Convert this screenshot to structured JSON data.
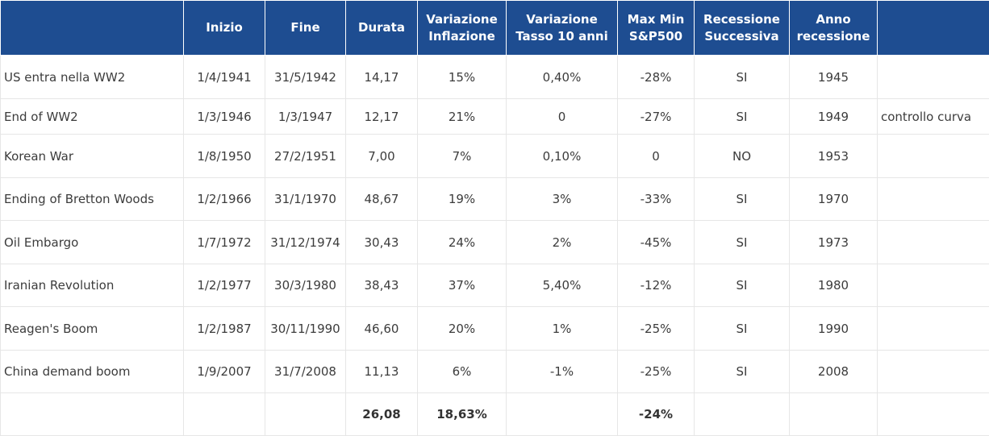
{
  "headers": [
    "",
    "Inizio",
    "Fine",
    "Durata",
    "Variazione Inflazione",
    "Variazione Tasso 10 anni",
    "Max Min S&P500",
    "Recessione Successiva",
    "Anno recessione",
    ""
  ],
  "rows": [
    {
      "evento": "US entra nella WW2",
      "inizio": "1/4/1941",
      "fine": "31/5/1942",
      "durata": "14,17",
      "inflazione": "15%",
      "tasso": "0,40%",
      "maxmin": "-28%",
      "recessione": "SI",
      "anno": "1945",
      "note": ""
    },
    {
      "evento": "End of WW2",
      "inizio": "1/3/1946",
      "fine": "1/3/1947",
      "durata": "12,17",
      "inflazione": "21%",
      "tasso": "0",
      "maxmin": "-27%",
      "recessione": "SI",
      "anno": "1949",
      "note": "controllo curva"
    },
    {
      "evento": "Korean War",
      "inizio": "1/8/1950",
      "fine": "27/2/1951",
      "durata": "7,00",
      "inflazione": "7%",
      "tasso": "0,10%",
      "maxmin": "0",
      "recessione": "NO",
      "anno": "1953",
      "note": ""
    },
    {
      "evento": "Ending of Bretton Woods",
      "inizio": "1/2/1966",
      "fine": "31/1/1970",
      "durata": "48,67",
      "inflazione": "19%",
      "tasso": "3%",
      "maxmin": "-33%",
      "recessione": "SI",
      "anno": "1970",
      "note": ""
    },
    {
      "evento": "Oil Embargo",
      "inizio": "1/7/1972",
      "fine": "31/12/1974",
      "durata": "30,43",
      "inflazione": "24%",
      "tasso": "2%",
      "maxmin": "-45%",
      "recessione": "SI",
      "anno": "1973",
      "note": ""
    },
    {
      "evento": "Iranian Revolution",
      "inizio": "1/2/1977",
      "fine": "30/3/1980",
      "durata": "38,43",
      "inflazione": "37%",
      "tasso": "5,40%",
      "maxmin": "-12%",
      "recessione": "SI",
      "anno": "1980",
      "note": ""
    },
    {
      "evento": "Reagen's Boom",
      "inizio": "1/2/1987",
      "fine": "30/11/1990",
      "durata": "46,60",
      "inflazione": "20%",
      "tasso": "1%",
      "maxmin": "-25%",
      "recessione": "SI",
      "anno": "1990",
      "note": ""
    },
    {
      "evento": "China demand boom",
      "inizio": "1/9/2007",
      "fine": "31/7/2008",
      "durata": "11,13",
      "inflazione": "6%",
      "tasso": "-1%",
      "maxmin": "-25%",
      "recessione": "SI",
      "anno": "2008",
      "note": ""
    }
  ],
  "totals": {
    "evento": "",
    "inizio": "",
    "fine": "",
    "durata": "26,08",
    "inflazione": "18,63%",
    "tasso": "",
    "maxmin": "-24%",
    "recessione": "",
    "anno": "",
    "note": ""
  },
  "colors": {
    "header_bg": "#1e4d91",
    "header_text": "#ffffff",
    "body_text": "#3c3c3c",
    "grid": "#e6e6e6"
  }
}
